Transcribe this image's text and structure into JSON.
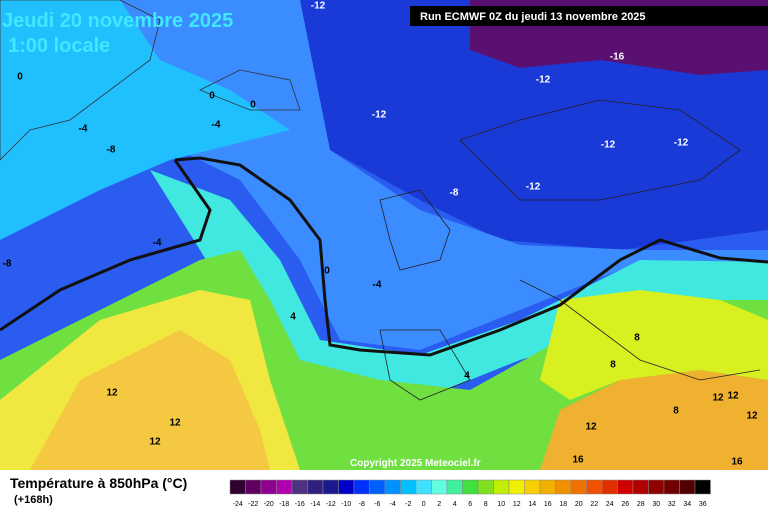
{
  "header": {
    "title": "Jeudi 20 novembre 2025",
    "time": "1:00 locale",
    "run": "Run ECMWF 0Z du jeudi 13 novembre 2025"
  },
  "contour_labels": [
    -12,
    -16,
    -12,
    -12,
    -12,
    -12,
    -12,
    -8,
    0,
    0,
    0,
    -4,
    -4,
    -8,
    -4,
    -8,
    0,
    -4,
    4,
    12,
    12,
    12,
    8,
    8,
    4,
    12,
    12,
    8,
    12,
    12,
    16,
    16
  ],
  "copyright": "Copyright 2025 Meteociel.fr",
  "legend": {
    "title": "Température à 850hPa (°C)",
    "lead": "(+168h)",
    "labels": [
      -24,
      -22,
      -20,
      -18,
      -16,
      -14,
      -12,
      -10,
      -8,
      -6,
      -4,
      -2,
      0,
      2,
      4,
      6,
      8,
      10,
      12,
      14,
      16,
      18,
      20,
      22,
      24,
      26,
      28,
      30,
      32,
      34,
      36
    ]
  }
}
